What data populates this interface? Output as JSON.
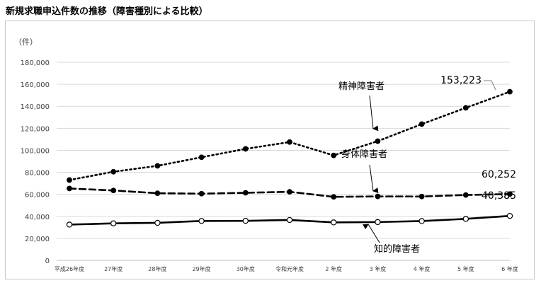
{
  "page": {
    "title": "新規求職申込件数の推移（障害種別による比較）"
  },
  "chart_data": {
    "type": "line",
    "title": "",
    "xlabel": "",
    "ylabel": "（件）",
    "ylim": [
      0,
      180000
    ],
    "yticks": [
      0,
      20000,
      40000,
      60000,
      80000,
      100000,
      120000,
      140000,
      160000,
      180000
    ],
    "ytick_labels": [
      "0",
      "20,000",
      "40,000",
      "60,000",
      "80,000",
      "100,000",
      "120,000",
      "140,000",
      "160,000",
      "180,000"
    ],
    "grid": true,
    "legend": "none",
    "categories": [
      "平成26年度",
      "27年度",
      "28年度",
      "29年度",
      "30年度",
      "令和元年度",
      "2 年度",
      "3 年度",
      "4 年度",
      "5 年度",
      "6 年度"
    ],
    "series": [
      {
        "name": "精神障害者",
        "line_style": "dotted",
        "marker": "filled",
        "color": "#000000",
        "values": [
          73000,
          80500,
          85900,
          93700,
          101300,
          107500,
          95400,
          108300,
          123800,
          138600,
          153223
        ],
        "end_label": "153,223"
      },
      {
        "name": "身体障害者",
        "line_style": "dashed",
        "marker": "filled",
        "color": "#000000",
        "values": [
          65300,
          63500,
          61000,
          60600,
          61400,
          62300,
          57700,
          58100,
          58000,
          59400,
          60252
        ],
        "end_label": "60,252"
      },
      {
        "name": "知的障害者",
        "line_style": "solid",
        "marker": "open",
        "color": "#000000",
        "values": [
          32500,
          33600,
          34100,
          35800,
          35900,
          36700,
          34500,
          34800,
          35700,
          37700,
          40385
        ],
        "end_label": "40,385"
      }
    ]
  }
}
